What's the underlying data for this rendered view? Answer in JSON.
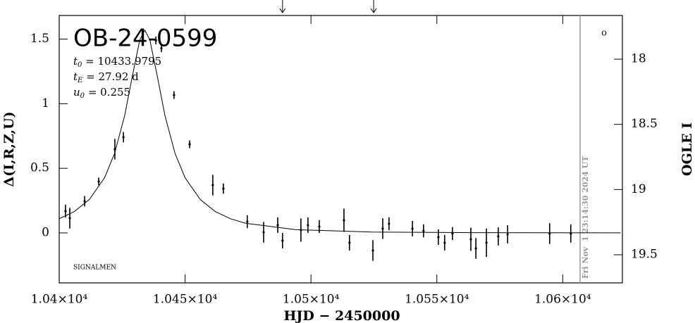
{
  "chart_data": {
    "type": "scatter",
    "title": "OB-24-0599",
    "params": [
      {
        "sym": "t",
        "sub": "0",
        "text": " = 10433.9795"
      },
      {
        "sym": "t",
        "sub": "E",
        "text": " = 27.92 d"
      },
      {
        "sym": "u",
        "sub": "0",
        "text": " = 0.255"
      }
    ],
    "xlabel": "HJD − 2450000",
    "ylabel": "Δ(I,R,Z,U)",
    "y2label": "OGLE I",
    "signature": "SIGNALMEN",
    "corner_mark": "o",
    "timestamp": {
      "text": "Fri Nov  1 23:14:30 2024 UT",
      "x": 10606.9
    },
    "arrows_x": [
      10488.7,
      10524.9
    ],
    "xlim": [
      10400,
      10623.7
    ],
    "xticks": [
      {
        "value": 10400,
        "label": "1.04×10⁴"
      },
      {
        "value": 10450,
        "label": "1.045×10⁴"
      },
      {
        "value": 10500,
        "label": "1.05×10⁴"
      },
      {
        "value": 10550,
        "label": "1.055×10⁴"
      },
      {
        "value": 10600,
        "label": "1.06×10⁴"
      }
    ],
    "ylim": [
      -0.387,
      1.683
    ],
    "yticks": [
      0,
      0.5,
      1,
      1.5
    ],
    "y2lim": [
      19.716,
      17.665
    ],
    "y2ticks": [
      18,
      18.5,
      19,
      19.5
    ],
    "series": [
      {
        "color": "#000000",
        "x": [
          10402.5,
          10404.2,
          10410.1,
          10415.7,
          10422.1,
          10425.5,
          10438.4,
          10440.6,
          10445.6,
          10451.8,
          10461.0,
          10465.2,
          10474.7,
          10481.2,
          10486.8,
          10488.7,
          10496.0,
          10498.8,
          10503.3,
          10513.1,
          10515.3,
          10524.6,
          10528.5,
          10531.0,
          10540.3,
          10544.7,
          10550.6,
          10553.1,
          10556.2,
          10563.5,
          10565.5,
          10569.7,
          10574.4,
          10578.1,
          10594.8,
          10603.2
        ],
        "values": [
          0.169,
          0.114,
          0.245,
          0.398,
          0.648,
          0.741,
          1.49,
          1.43,
          1.067,
          0.686,
          0.37,
          0.343,
          0.087,
          0.005,
          0.06,
          -0.06,
          0.022,
          0.06,
          0.049,
          0.098,
          -0.076,
          -0.136,
          0.033,
          0.071,
          0.033,
          0.016,
          -0.033,
          -0.076,
          -0.005,
          -0.049,
          -0.12,
          -0.076,
          -0.027,
          -0.011,
          -0.005,
          -0.005
        ],
        "errors": [
          0.05,
          0.08,
          0.04,
          0.03,
          0.08,
          0.04,
          0.03,
          0.03,
          0.03,
          0.03,
          0.08,
          0.04,
          0.05,
          0.08,
          0.06,
          0.06,
          0.09,
          0.06,
          0.05,
          0.09,
          0.06,
          0.08,
          0.08,
          0.05,
          0.06,
          0.05,
          0.06,
          0.06,
          0.05,
          0.09,
          0.08,
          0.11,
          0.07,
          0.07,
          0.08,
          0.07
        ]
      }
    ],
    "model": {
      "color": "#000000",
      "x": [
        10400,
        10406,
        10412,
        10418,
        10422,
        10426,
        10429,
        10432,
        10434,
        10436,
        10439,
        10442,
        10446,
        10450,
        10456,
        10462,
        10468,
        10474,
        10494,
        10524,
        10564,
        10623
      ],
      "values": [
        0.11,
        0.165,
        0.259,
        0.427,
        0.616,
        0.909,
        1.209,
        1.494,
        1.569,
        1.494,
        1.209,
        0.909,
        0.616,
        0.427,
        0.259,
        0.165,
        0.11,
        0.075,
        0.025,
        0.007,
        0.002,
        0.0005
      ]
    }
  }
}
